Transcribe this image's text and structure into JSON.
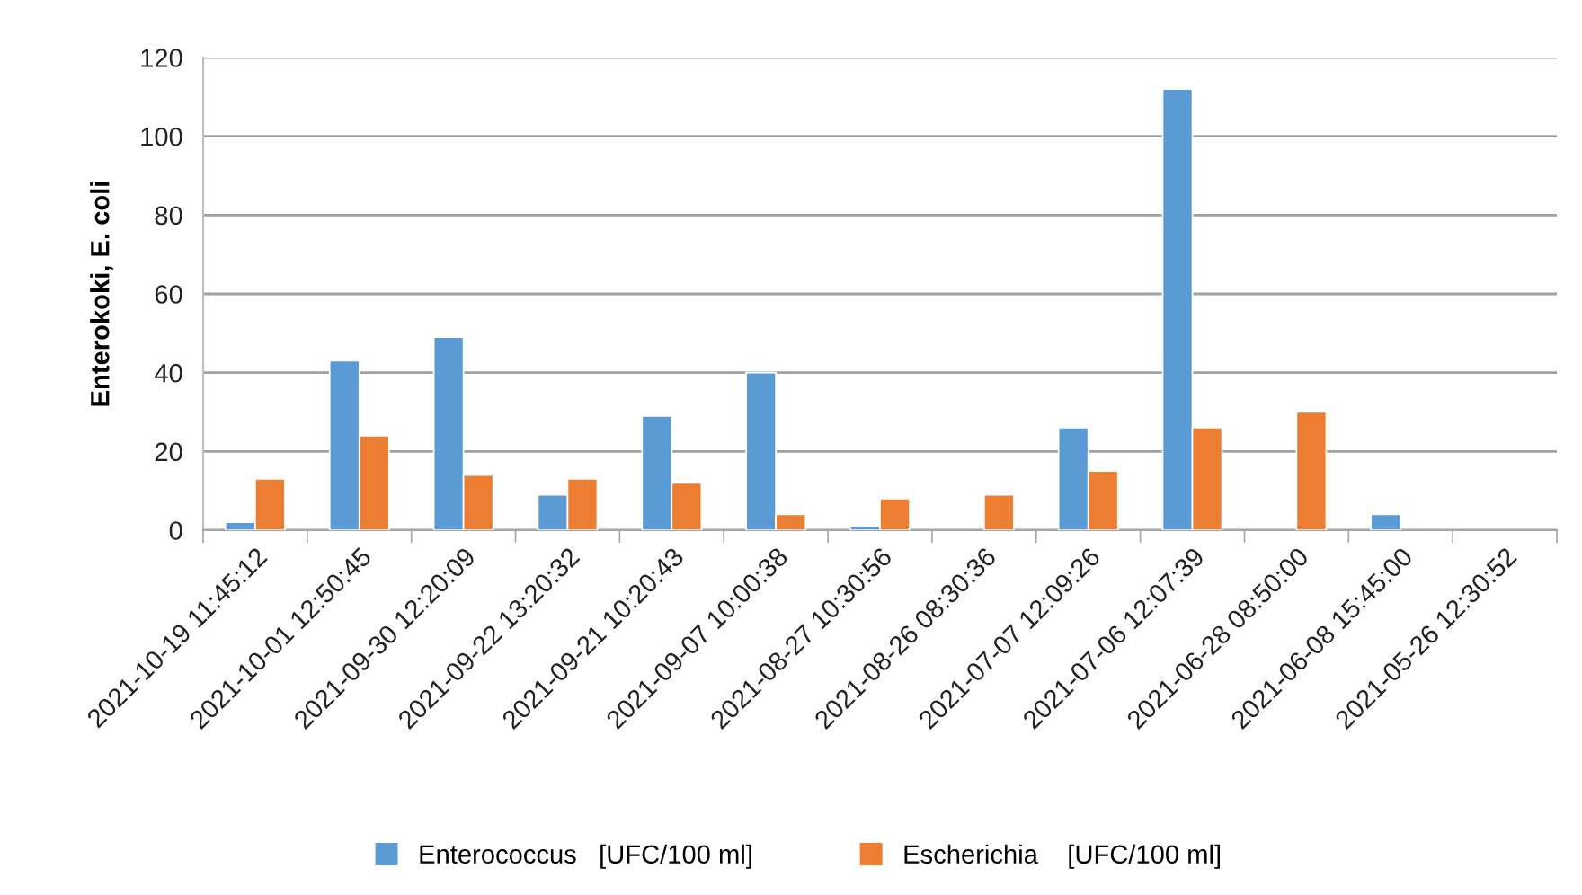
{
  "chart_data": {
    "type": "bar",
    "ylabel": "Enterokoki, E. coli",
    "categories": [
      "2021-10-19 11:45:12",
      "2021-10-01 12:50:45",
      "2021-09-30 12:20:09",
      "2021-09-22 13:20:32",
      "2021-09-21 10:20:43",
      "2021-09-07 10:00:38",
      "2021-08-27 10:30:56",
      "2021-08-26 08:30:36",
      "2021-07-07 12:09:26",
      "2021-07-06 12:07:39",
      "2021-06-28 08:50:00",
      "2021-06-08 15:45:00",
      "2021-05-26 12:30:52"
    ],
    "series": [
      {
        "name": "Enterococcus   [UFC/100 ml]",
        "color": "#5b9bd5",
        "values": [
          2,
          43,
          49,
          9,
          29,
          40,
          1,
          null,
          26,
          112,
          null,
          4,
          null
        ]
      },
      {
        "name": "Escherichia    [UFC/100 ml]",
        "color": "#ed7d31",
        "values": [
          13,
          24,
          14,
          13,
          12,
          4,
          8,
          9,
          15,
          26,
          30,
          null,
          null
        ]
      }
    ],
    "ylim": [
      0,
      120
    ],
    "yticks": [
      0,
      20,
      40,
      60,
      80,
      100,
      120
    ],
    "grid": "y",
    "legend": "bottom"
  }
}
